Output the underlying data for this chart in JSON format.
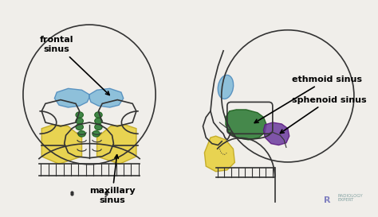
{
  "bg_color": "#f0eeea",
  "frontal_sinus_color": "#7db8d8",
  "ethmoid_sinus_color": "#2d7a35",
  "maxillary_sinus_color": "#e8d040",
  "sphenoid_sinus_color": "#7040a0",
  "label_frontal": "frontal\nsinus",
  "label_maxillary": "maxillary\nsinus",
  "label_ethmoid": "ethmoid sinus",
  "label_sphenoid": "sphenoid sinus",
  "skull_color": "#333333",
  "watermark_r_color": "#8080c0",
  "watermark_text_color": "#80a0a0"
}
